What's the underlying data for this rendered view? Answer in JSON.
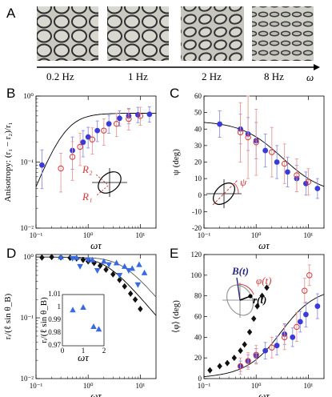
{
  "panels": {
    "a": {
      "label": "A",
      "frequencies": [
        "0.2 Hz",
        "1 Hz",
        "2 Hz",
        "8 Hz"
      ],
      "axis_symbol": "ω"
    },
    "b": {
      "label": "B"
    },
    "c": {
      "label": "C"
    },
    "d": {
      "label": "D"
    },
    "e": {
      "label": "E"
    }
  },
  "colors": {
    "blue": "#3a3ad8",
    "red": "#d23a3a",
    "black": "#111111",
    "tri": "#3a6ae0",
    "pink_err": "#e79a9a",
    "blue_err": "#8f8fe6"
  },
  "chart_data": [
    {
      "panel": "B",
      "type": "scatter",
      "xlabel": "ωτ",
      "ylabel": "Anisotropy: (r₁ − r₂)/r₁",
      "xscale": "log",
      "yscale": "log",
      "xlim": [
        0.1,
        20
      ],
      "ylim": [
        0.01,
        1
      ],
      "xticks": [
        "10⁻¹",
        "10⁰",
        "10¹"
      ],
      "yticks": [
        "10⁻²",
        "10⁻¹",
        "10⁰"
      ],
      "inset_labels": [
        "R₂",
        "R₁"
      ],
      "series": [
        {
          "marker": "filled-circle",
          "color": "blue",
          "x": [
            0.13,
            0.5,
            0.8,
            1.0,
            1.5,
            2.5,
            4.0,
            6.0,
            9.0,
            15.0
          ],
          "y": [
            0.09,
            0.15,
            0.2,
            0.24,
            0.3,
            0.38,
            0.46,
            0.5,
            0.52,
            0.53
          ],
          "err": [
            0.7,
            0.6,
            0.5,
            0.4,
            0.4,
            0.35,
            0.3,
            0.3,
            0.3,
            0.3
          ]
        },
        {
          "marker": "open-circle",
          "color": "red",
          "x": [
            0.3,
            0.5,
            0.7,
            1.2,
            2.0,
            3.5,
            6.0,
            10.0
          ],
          "y": [
            0.08,
            0.12,
            0.17,
            0.22,
            0.3,
            0.38,
            0.45,
            0.5
          ],
          "err": [
            0.7,
            0.7,
            0.6,
            0.5,
            0.5,
            0.45,
            0.4,
            0.35
          ]
        }
      ]
    },
    {
      "panel": "C",
      "type": "scatter",
      "xlabel": "ωτ",
      "ylabel": "ψ (deg)",
      "xscale": "log",
      "yscale": "linear",
      "xlim": [
        0.1,
        20
      ],
      "ylim": [
        -20,
        60
      ],
      "xticks": [
        "10⁻¹",
        "10⁰",
        "10¹"
      ],
      "yticks": [
        "-20",
        "-10",
        "0",
        "10",
        "20",
        "30",
        "40",
        "50",
        "60"
      ],
      "inset_labels": [
        "ψ"
      ],
      "series": [
        {
          "marker": "filled-circle",
          "color": "blue",
          "x": [
            0.2,
            0.5,
            0.7,
            1.0,
            1.5,
            2.5,
            4.0,
            6.0,
            9.0,
            15.0
          ],
          "y": [
            43,
            40,
            37,
            33,
            27,
            20,
            14,
            10,
            7,
            4
          ],
          "err": [
            8,
            9,
            10,
            11,
            10,
            10,
            9,
            8,
            7,
            6
          ]
        },
        {
          "marker": "open-circle",
          "color": "red",
          "x": [
            0.5,
            0.7,
            1.0,
            2.0,
            3.5,
            6.0,
            10.0
          ],
          "y": [
            38,
            35,
            32,
            26,
            19,
            12,
            8
          ],
          "err": [
            18,
            25,
            20,
            15,
            12,
            10,
            8
          ]
        }
      ]
    },
    {
      "panel": "D",
      "type": "scatter",
      "xlabel": "ωτ",
      "ylabel": "rᵢ/(ℓ sin θ_B)",
      "xscale": "log",
      "yscale": "log",
      "xlim": [
        0.1,
        20
      ],
      "ylim": [
        0.01,
        1.1
      ],
      "xticks": [
        "10⁻¹",
        "10⁰",
        "10¹"
      ],
      "yticks": [
        "10⁻²",
        "10⁻¹",
        "10⁰"
      ],
      "series": [
        {
          "marker": "diamond",
          "color": "black",
          "x": [
            0.13,
            0.2,
            0.3,
            0.45,
            0.6,
            0.8,
            1.0,
            1.3,
            1.7,
            2.2,
            3.0,
            4.0,
            5.0,
            6.5,
            8.0,
            10.0
          ],
          "y": [
            0.98,
            1.0,
            0.99,
            0.97,
            0.95,
            0.9,
            0.85,
            0.8,
            0.72,
            0.62,
            0.52,
            0.42,
            0.33,
            0.25,
            0.2,
            0.14
          ]
        },
        {
          "marker": "triangle-down",
          "color": "tri",
          "x": [
            0.5,
            0.7,
            1.0,
            1.5,
            2.5,
            4.0,
            6.0,
            9.0
          ],
          "y": [
            0.95,
            0.7,
            0.9,
            0.6,
            0.75,
            0.5,
            0.6,
            0.35
          ]
        },
        {
          "marker": "triangle-up",
          "color": "tri",
          "x": [
            0.3,
            0.6,
            1.2,
            2.0,
            3.5,
            5.0,
            7.0,
            9.5,
            12.0
          ],
          "y": [
            1.0,
            0.98,
            0.9,
            0.85,
            0.8,
            0.7,
            0.65,
            0.75,
            0.55
          ]
        }
      ],
      "inset": {
        "xlabel": "ωτ",
        "ylabel": "rᵢ/(ℓ sin θ_B)",
        "xlim": [
          0,
          2
        ],
        "ylim": [
          0.97,
          1.01
        ],
        "xticks": [
          "0",
          "1",
          "2"
        ],
        "yticks": [
          "0.97",
          "0.98",
          "0.99",
          "1",
          "1.01"
        ],
        "x": [
          0.5,
          1.0,
          1.5,
          1.75
        ],
        "y": [
          0.998,
          1.0,
          0.985,
          0.983
        ]
      }
    },
    {
      "panel": "E",
      "type": "scatter",
      "xlabel": "ωτ",
      "ylabel": "⟨φ⟩ (deg)",
      "xscale": "log",
      "yscale": "linear",
      "xlim": [
        0.1,
        20
      ],
      "ylim": [
        0,
        120
      ],
      "xticks": [
        "10⁻¹",
        "10⁰",
        "10¹"
      ],
      "yticks": [
        "0",
        "20",
        "40",
        "60",
        "80",
        "100",
        "120"
      ],
      "inset_labels": [
        "B(t)",
        "φ(t)",
        "r(t)"
      ],
      "series": [
        {
          "marker": "diamond",
          "color": "black",
          "x": [
            0.13,
            0.2,
            0.28,
            0.38,
            0.5,
            0.6,
            0.75,
            0.9,
            1.05,
            1.3,
            1.6
          ],
          "y": [
            8,
            12,
            15,
            20,
            27,
            33,
            45,
            58,
            70,
            80,
            88
          ]
        },
        {
          "marker": "filled-circle",
          "color": "blue",
          "x": [
            0.5,
            0.7,
            1.0,
            1.5,
            2.5,
            3.5,
            5.0,
            7.0,
            9.0,
            15.0
          ],
          "y": [
            12,
            17,
            22,
            27,
            32,
            43,
            40,
            55,
            62,
            70
          ],
          "err": [
            5,
            6,
            7,
            8,
            9,
            10,
            9,
            10,
            12,
            12
          ]
        },
        {
          "marker": "open-circle",
          "color": "red",
          "x": [
            0.5,
            0.7,
            1.0,
            2.0,
            3.5,
            6.0,
            8.5,
            10.5
          ],
          "y": [
            12,
            17,
            23,
            30,
            40,
            50,
            85,
            100
          ],
          "err": [
            8,
            8,
            9,
            10,
            12,
            14,
            12,
            10
          ]
        }
      ]
    }
  ]
}
